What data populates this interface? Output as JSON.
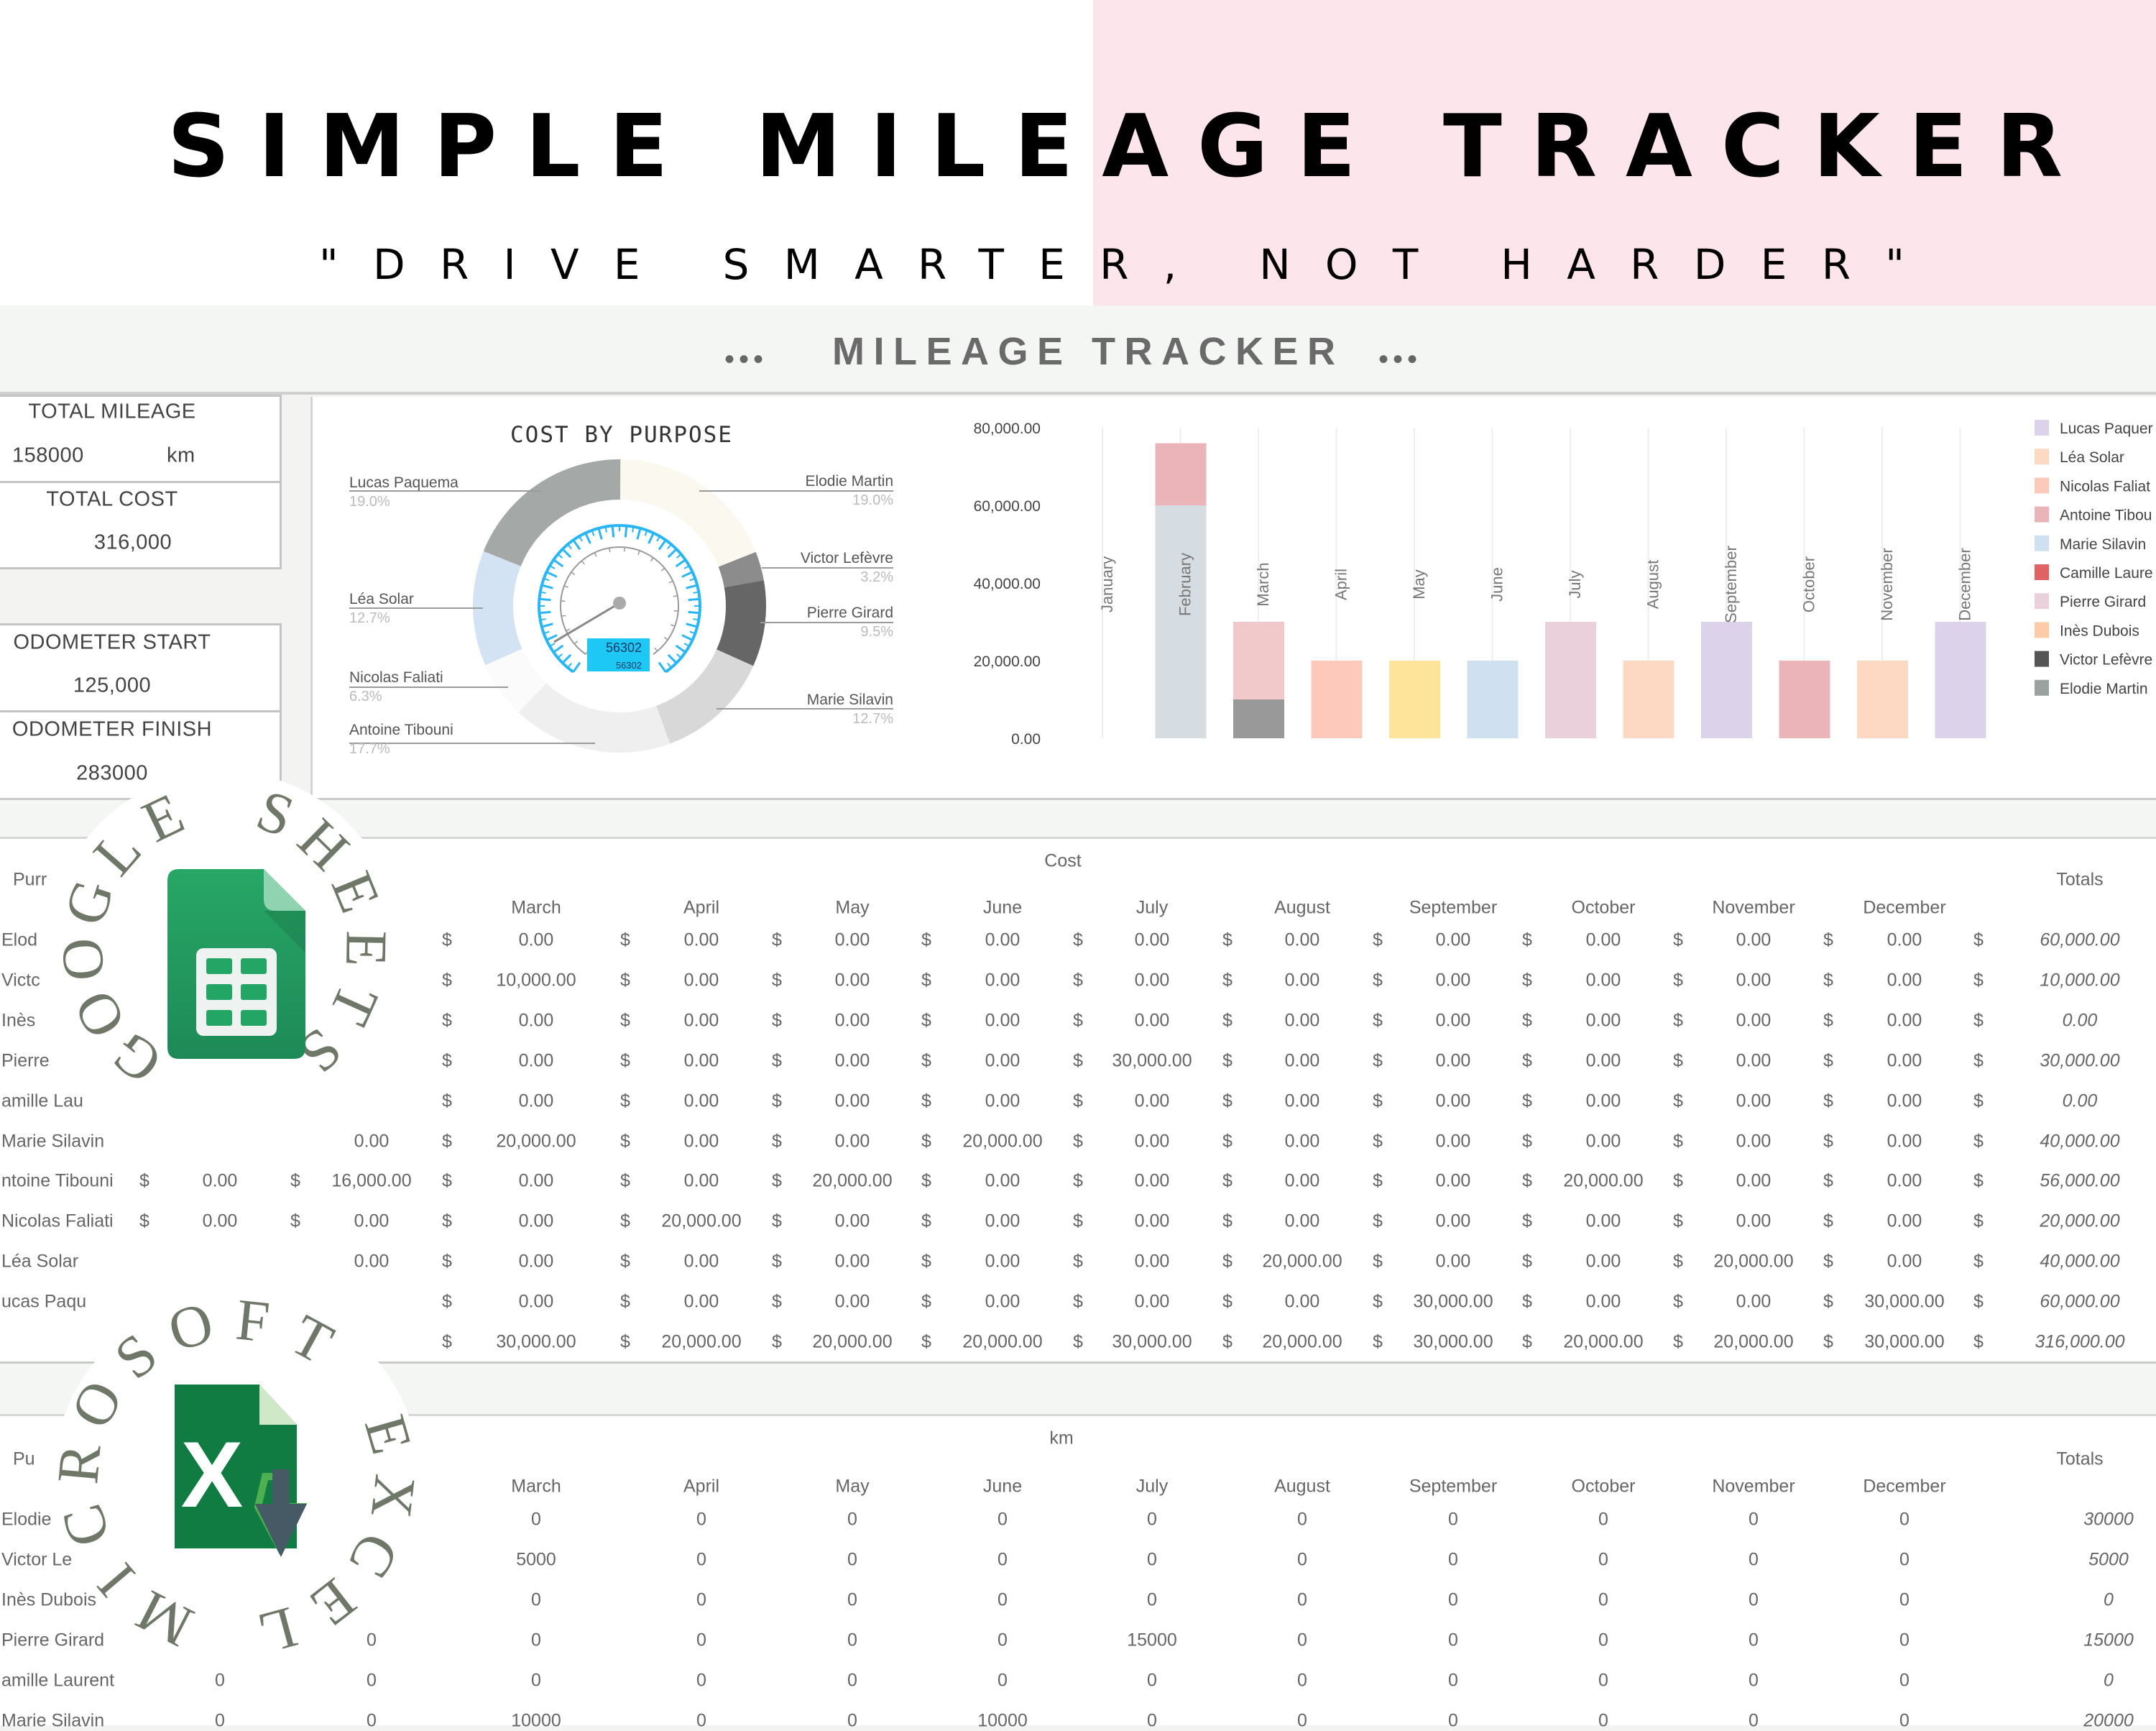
{
  "header": {
    "title": "SIMPLE MILEAGE TRACKER",
    "subtitle": "\"DRIVE SMARTER, NOT HARDER\"",
    "band_title": "MILEAGE TRACKER",
    "band_dots": "•••",
    "pink": "#fde5ec"
  },
  "kpis": {
    "total_mileage_label": "TOTAL MILEAGE",
    "total_mileage_value": "158000",
    "total_mileage_unit": "km",
    "total_cost_label": "TOTAL COST",
    "total_cost_value": "316,000",
    "odometer_start_label": "ODOMETER START",
    "odometer_start_value": "125,000",
    "odometer_finish_label": "ODOMETER FINISH",
    "odometer_finish_value": "283000"
  },
  "badges": {
    "google": {
      "ring_text": "GOOGLE SHEETS",
      "icon": "google-sheets-icon"
    },
    "excel": {
      "ring_text": "MICROSOFT EXCEL",
      "icon": "microsoft-excel-icon"
    }
  },
  "chart_data": [
    {
      "type": "pie",
      "title": "COST BY PURPOSE",
      "style": "donut",
      "slices": [
        {
          "label": "Elodie Martin",
          "pct_label": "19.0%",
          "value": 19.0,
          "color": "#fbf8f0"
        },
        {
          "label": "Victor Lefèvre",
          "pct_label": "3.2%",
          "value": 3.2,
          "color": "#8c8c8c"
        },
        {
          "label": "Pierre Girard",
          "pct_label": "9.5%",
          "value": 9.5,
          "color": "#666666"
        },
        {
          "label": "Marie Silavin",
          "pct_label": "12.7%",
          "value": 12.7,
          "color": "#d8d8d8"
        },
        {
          "label": "Antoine Tibouni",
          "pct_label": "17.7%",
          "value": 17.7,
          "color": "#efefef"
        },
        {
          "label": "Nicolas Faliati",
          "pct_label": "6.3%",
          "value": 6.3,
          "color": "#fbfbfb"
        },
        {
          "label": "Léa Solar",
          "pct_label": "12.7%",
          "value": 12.7,
          "color": "#d3e3f3"
        },
        {
          "label": "Lucas Paquema",
          "pct_label": "19.0%",
          "value": 19.0,
          "color": "#a4a8a6"
        }
      ],
      "center_gauge_readout": "56302",
      "gauge_color": "#29b6f6"
    },
    {
      "type": "bar",
      "stacked": true,
      "categories": [
        "January",
        "February",
        "March",
        "April",
        "May",
        "June",
        "July",
        "August",
        "September",
        "October",
        "November",
        "December"
      ],
      "yticks": [
        "80,000.00",
        "60,000.00",
        "40,000.00",
        "20,000.00",
        "0.00"
      ],
      "ylim": [
        0,
        80000
      ],
      "grid": "vertical",
      "legend_position": "right",
      "stacks": [
        [],
        [
          {
            "value": 60000,
            "color": "#d5dde3"
          },
          {
            "value": 16000,
            "color": "#ebb4b8"
          }
        ],
        [
          {
            "value": 10000,
            "color": "#999999"
          },
          {
            "value": 20000,
            "color": "#f2c9ca"
          }
        ],
        [
          {
            "value": 20000,
            "color": "#fdc9bb"
          }
        ],
        [
          {
            "value": 20000,
            "color": "#fde49a"
          }
        ],
        [
          {
            "value": 20000,
            "color": "#cfe0f1"
          }
        ],
        [
          {
            "value": 30000,
            "color": "#ead0db"
          }
        ],
        [
          {
            "value": 20000,
            "color": "#fdd9c4"
          }
        ],
        [
          {
            "value": 30000,
            "color": "#dcd3ea"
          }
        ],
        [
          {
            "value": 20000,
            "color": "#ebb4b8"
          }
        ],
        [
          {
            "value": 20000,
            "color": "#fdd9c4"
          }
        ],
        [
          {
            "value": 30000,
            "color": "#dcd3ea"
          }
        ]
      ],
      "legend": [
        {
          "name": "Lucas Paquer",
          "color": "#dcd3ea"
        },
        {
          "name": "Léa Solar",
          "color": "#fdd9c4"
        },
        {
          "name": "Nicolas Faliat",
          "color": "#fdc9bb"
        },
        {
          "name": "Antoine Tibou",
          "color": "#ebb4b8"
        },
        {
          "name": "Marie Silavin",
          "color": "#cfe0f1"
        },
        {
          "name": "Camille Laure",
          "color": "#e06262"
        },
        {
          "name": "Pierre Girard",
          "color": "#ead0db"
        },
        {
          "name": "Inès Dubois",
          "color": "#fdcba8"
        },
        {
          "name": "Victor Lefèvre",
          "color": "#555555"
        },
        {
          "name": "Elodie Martin",
          "color": "#9aa39f"
        }
      ]
    }
  ],
  "cost_table": {
    "title": "Cost",
    "purpose_header": "Purr",
    "totals_header": "Totals",
    "months": [
      null,
      null,
      "March",
      "April",
      "May",
      "June",
      "July",
      "August",
      "September",
      "October",
      "November",
      "December"
    ],
    "rows": [
      {
        "name": "Elod",
        "cells": [
          [
            null,
            null
          ],
          [
            null,
            null
          ],
          [
            "$",
            "0.00"
          ],
          [
            "$",
            "0.00"
          ],
          [
            "$",
            "0.00"
          ],
          [
            "$",
            "0.00"
          ],
          [
            "$",
            "0.00"
          ],
          [
            "$",
            "0.00"
          ],
          [
            "$",
            "0.00"
          ],
          [
            "$",
            "0.00"
          ],
          [
            "$",
            "0.00"
          ],
          [
            "$",
            "0.00"
          ]
        ],
        "total": [
          "$",
          "60,000.00"
        ]
      },
      {
        "name": "Victc",
        "cells": [
          [
            null,
            null
          ],
          [
            null,
            null
          ],
          [
            "$",
            "10,000.00"
          ],
          [
            "$",
            "0.00"
          ],
          [
            "$",
            "0.00"
          ],
          [
            "$",
            "0.00"
          ],
          [
            "$",
            "0.00"
          ],
          [
            "$",
            "0.00"
          ],
          [
            "$",
            "0.00"
          ],
          [
            "$",
            "0.00"
          ],
          [
            "$",
            "0.00"
          ],
          [
            "$",
            "0.00"
          ]
        ],
        "total": [
          "$",
          "10,000.00"
        ]
      },
      {
        "name": "Inès",
        "cells": [
          [
            null,
            null
          ],
          [
            null,
            null
          ],
          [
            "$",
            "0.00"
          ],
          [
            "$",
            "0.00"
          ],
          [
            "$",
            "0.00"
          ],
          [
            "$",
            "0.00"
          ],
          [
            "$",
            "0.00"
          ],
          [
            "$",
            "0.00"
          ],
          [
            "$",
            "0.00"
          ],
          [
            "$",
            "0.00"
          ],
          [
            "$",
            "0.00"
          ],
          [
            "$",
            "0.00"
          ]
        ],
        "total": [
          "$",
          "0.00"
        ]
      },
      {
        "name": "Pierre",
        "cells": [
          [
            null,
            null
          ],
          [
            null,
            null
          ],
          [
            "$",
            "0.00"
          ],
          [
            "$",
            "0.00"
          ],
          [
            "$",
            "0.00"
          ],
          [
            "$",
            "0.00"
          ],
          [
            "$",
            "30,000.00"
          ],
          [
            "$",
            "0.00"
          ],
          [
            "$",
            "0.00"
          ],
          [
            "$",
            "0.00"
          ],
          [
            "$",
            "0.00"
          ],
          [
            "$",
            "0.00"
          ]
        ],
        "total": [
          "$",
          "30,000.00"
        ]
      },
      {
        "name": "amille Lau",
        "cells": [
          [
            null,
            null
          ],
          [
            null,
            null
          ],
          [
            "$",
            "0.00"
          ],
          [
            "$",
            "0.00"
          ],
          [
            "$",
            "0.00"
          ],
          [
            "$",
            "0.00"
          ],
          [
            "$",
            "0.00"
          ],
          [
            "$",
            "0.00"
          ],
          [
            "$",
            "0.00"
          ],
          [
            "$",
            "0.00"
          ],
          [
            "$",
            "0.00"
          ],
          [
            "$",
            "0.00"
          ]
        ],
        "total": [
          "$",
          "0.00"
        ]
      },
      {
        "name": "Marie Silavin",
        "cells": [
          [
            null,
            null
          ],
          [
            null,
            "0.00"
          ],
          [
            "$",
            "20,000.00"
          ],
          [
            "$",
            "0.00"
          ],
          [
            "$",
            "0.00"
          ],
          [
            "$",
            "20,000.00"
          ],
          [
            "$",
            "0.00"
          ],
          [
            "$",
            "0.00"
          ],
          [
            "$",
            "0.00"
          ],
          [
            "$",
            "0.00"
          ],
          [
            "$",
            "0.00"
          ],
          [
            "$",
            "0.00"
          ]
        ],
        "total": [
          "$",
          "40,000.00"
        ]
      },
      {
        "name": "ntoine Tibouni",
        "cells": [
          [
            "$",
            "0.00"
          ],
          [
            "$",
            "16,000.00"
          ],
          [
            "$",
            "0.00"
          ],
          [
            "$",
            "0.00"
          ],
          [
            "$",
            "20,000.00"
          ],
          [
            "$",
            "0.00"
          ],
          [
            "$",
            "0.00"
          ],
          [
            "$",
            "0.00"
          ],
          [
            "$",
            "0.00"
          ],
          [
            "$",
            "20,000.00"
          ],
          [
            "$",
            "0.00"
          ],
          [
            "$",
            "0.00"
          ]
        ],
        "total": [
          "$",
          "56,000.00"
        ]
      },
      {
        "name": "Nicolas Faliati",
        "cells": [
          [
            "$",
            "0.00"
          ],
          [
            "$",
            "0.00"
          ],
          [
            "$",
            "0.00"
          ],
          [
            "$",
            "20,000.00"
          ],
          [
            "$",
            "0.00"
          ],
          [
            "$",
            "0.00"
          ],
          [
            "$",
            "0.00"
          ],
          [
            "$",
            "0.00"
          ],
          [
            "$",
            "0.00"
          ],
          [
            "$",
            "0.00"
          ],
          [
            "$",
            "0.00"
          ],
          [
            "$",
            "0.00"
          ]
        ],
        "total": [
          "$",
          "20,000.00"
        ]
      },
      {
        "name": "Léa Solar",
        "cells": [
          [
            null,
            null
          ],
          [
            null,
            "0.00"
          ],
          [
            "$",
            "0.00"
          ],
          [
            "$",
            "0.00"
          ],
          [
            "$",
            "0.00"
          ],
          [
            "$",
            "0.00"
          ],
          [
            "$",
            "0.00"
          ],
          [
            "$",
            "20,000.00"
          ],
          [
            "$",
            "0.00"
          ],
          [
            "$",
            "0.00"
          ],
          [
            "$",
            "20,000.00"
          ],
          [
            "$",
            "0.00"
          ]
        ],
        "total": [
          "$",
          "40,000.00"
        ]
      },
      {
        "name": "ucas Paqu",
        "cells": [
          [
            null,
            null
          ],
          [
            null,
            null
          ],
          [
            "$",
            "0.00"
          ],
          [
            "$",
            "0.00"
          ],
          [
            "$",
            "0.00"
          ],
          [
            "$",
            "0.00"
          ],
          [
            "$",
            "0.00"
          ],
          [
            "$",
            "0.00"
          ],
          [
            "$",
            "30,000.00"
          ],
          [
            "$",
            "0.00"
          ],
          [
            "$",
            "0.00"
          ],
          [
            "$",
            "30,000.00"
          ]
        ],
        "total": [
          "$",
          "60,000.00"
        ]
      },
      {
        "name": "",
        "cells": [
          [
            null,
            null
          ],
          [
            null,
            null
          ],
          [
            "$",
            "30,000.00"
          ],
          [
            "$",
            "20,000.00"
          ],
          [
            "$",
            "20,000.00"
          ],
          [
            "$",
            "20,000.00"
          ],
          [
            "$",
            "30,000.00"
          ],
          [
            "$",
            "20,000.00"
          ],
          [
            "$",
            "30,000.00"
          ],
          [
            "$",
            "20,000.00"
          ],
          [
            "$",
            "20,000.00"
          ],
          [
            "$",
            "30,000.00"
          ]
        ],
        "total": [
          "$",
          "316,000.00"
        ]
      }
    ]
  },
  "km_table": {
    "title": "km",
    "purpose_header": "Pu",
    "totals_header": "Totals",
    "months": [
      null,
      null,
      "March",
      "April",
      "May",
      "June",
      "July",
      "August",
      "September",
      "October",
      "November",
      "December"
    ],
    "rows": [
      {
        "name": "Elodie",
        "cells": [
          null,
          null,
          "0",
          "0",
          "0",
          "0",
          "0",
          "0",
          "0",
          "0",
          "0",
          "0"
        ],
        "total": "30000"
      },
      {
        "name": "Victor Le",
        "cells": [
          null,
          null,
          "5000",
          "0",
          "0",
          "0",
          "0",
          "0",
          "0",
          "0",
          "0",
          "0"
        ],
        "total": "5000"
      },
      {
        "name": "Inès Dubois",
        "cells": [
          null,
          null,
          "0",
          "0",
          "0",
          "0",
          "0",
          "0",
          "0",
          "0",
          "0",
          "0"
        ],
        "total": "0"
      },
      {
        "name": "Pierre Girard",
        "cells": [
          null,
          "0",
          "0",
          "0",
          "0",
          "0",
          "15000",
          "0",
          "0",
          "0",
          "0",
          "0"
        ],
        "total": "15000"
      },
      {
        "name": "amille Laurent",
        "cells": [
          "0",
          "0",
          "0",
          "0",
          "0",
          "0",
          "0",
          "0",
          "0",
          "0",
          "0",
          "0"
        ],
        "total": "0"
      },
      {
        "name": "Marie Silavin",
        "cells": [
          "0",
          "0",
          "10000",
          "0",
          "0",
          "10000",
          "0",
          "0",
          "0",
          "0",
          "0",
          "0"
        ],
        "total": "20000"
      }
    ]
  }
}
